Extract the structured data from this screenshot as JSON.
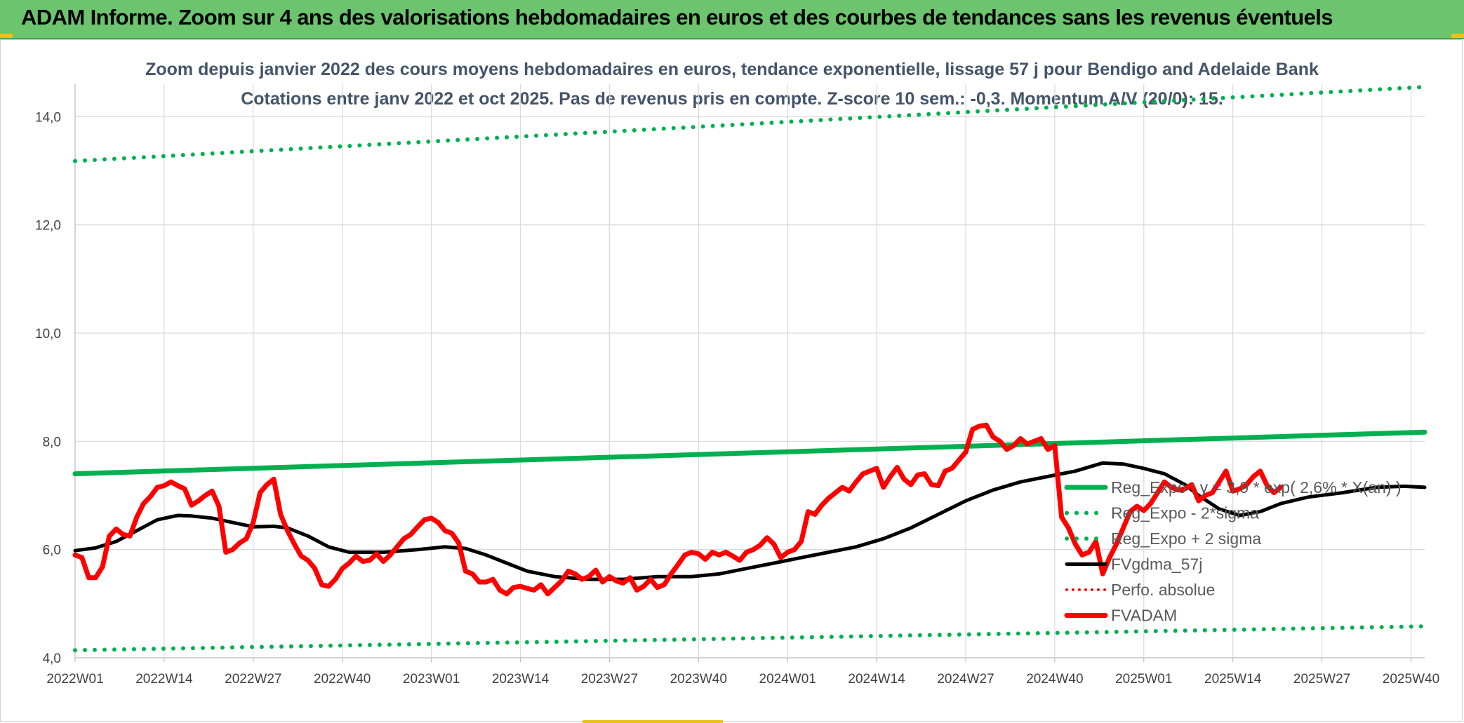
{
  "banner": {
    "title": "ADAM Informe. Zoom sur 4 ans des valorisations hebdomadaires en euros et des courbes de tendances sans les revenus éventuels"
  },
  "colors": {
    "banner": "#6cc46e",
    "reg_expo": "#00b050",
    "fvgdma": "#000000",
    "fvadam": "#ff0000",
    "perfo": "#ff0000",
    "grid": "#d9d9d9",
    "subtitle": "#44546a"
  },
  "chart_data": {
    "type": "line",
    "title_line1": "Zoom depuis janvier 2022 des cours moyens hebdomadaires en euros, tendance exponentielle, lissage 57 j pour Bendigo and Adelaide Bank",
    "title_line2": "Cotations entre janv 2022 et oct 2025. Pas de revenus pris en compte. Z-score 10 sem.: -0,3. Momentum A/V (20/0): 15.",
    "ylim": [
      4.0,
      14.6
    ],
    "yticks": [
      4.0,
      6.0,
      8.0,
      10.0,
      12.0,
      14.0
    ],
    "ytick_labels": [
      "4,0",
      "6,0",
      "8,0",
      "10,0",
      "12,0",
      "14,0"
    ],
    "x_range": [
      0,
      197
    ],
    "xticks": [
      0,
      13,
      26,
      39,
      52,
      65,
      78,
      91,
      104,
      117,
      130,
      143,
      156,
      169,
      182,
      195
    ],
    "xtick_labels": [
      "2022W01",
      "2022W14",
      "2022W27",
      "2022W40",
      "2023W01",
      "2023W14",
      "2023W27",
      "2023W40",
      "2024W01",
      "2024W14",
      "2024W27",
      "2024W40",
      "2025W01",
      "2025W14",
      "2025W27",
      "2025W40"
    ],
    "grid": true,
    "legend_position": "right",
    "series": [
      {
        "name": "Reg_Expo : y = 3,9 * exp( 2,6% * X(an) )",
        "style": "solid-thick",
        "points": [
          [
            0,
            7.4
          ],
          [
            197,
            8.17
          ]
        ]
      },
      {
        "name": "Reg_Expo - 2*sigma",
        "style": "dotted",
        "points": [
          [
            0,
            4.14
          ],
          [
            197,
            4.58
          ]
        ]
      },
      {
        "name": "Reg_Expo + 2 sigma",
        "style": "dotted",
        "points": [
          [
            0,
            13.18
          ],
          [
            197,
            14.55
          ]
        ]
      },
      {
        "name": "FVgdma_57j",
        "style": "solid",
        "points": [
          [
            0,
            5.98
          ],
          [
            3,
            6.03
          ],
          [
            6,
            6.15
          ],
          [
            9,
            6.35
          ],
          [
            12,
            6.55
          ],
          [
            15,
            6.63
          ],
          [
            17,
            6.62
          ],
          [
            20,
            6.58
          ],
          [
            23,
            6.5
          ],
          [
            26,
            6.42
          ],
          [
            29,
            6.43
          ],
          [
            31,
            6.4
          ],
          [
            34,
            6.25
          ],
          [
            37,
            6.05
          ],
          [
            40,
            5.95
          ],
          [
            45,
            5.95
          ],
          [
            50,
            6.0
          ],
          [
            54,
            6.05
          ],
          [
            57,
            6.02
          ],
          [
            60,
            5.9
          ],
          [
            63,
            5.75
          ],
          [
            66,
            5.6
          ],
          [
            70,
            5.5
          ],
          [
            75,
            5.45
          ],
          [
            80,
            5.45
          ],
          [
            85,
            5.5
          ],
          [
            90,
            5.5
          ],
          [
            94,
            5.55
          ],
          [
            98,
            5.65
          ],
          [
            102,
            5.75
          ],
          [
            106,
            5.85
          ],
          [
            110,
            5.95
          ],
          [
            114,
            6.05
          ],
          [
            118,
            6.2
          ],
          [
            122,
            6.4
          ],
          [
            126,
            6.65
          ],
          [
            130,
            6.9
          ],
          [
            134,
            7.1
          ],
          [
            138,
            7.25
          ],
          [
            142,
            7.35
          ],
          [
            146,
            7.45
          ],
          [
            150,
            7.6
          ],
          [
            153,
            7.58
          ],
          [
            156,
            7.5
          ],
          [
            159,
            7.4
          ],
          [
            162,
            7.2
          ],
          [
            164,
            7.0
          ],
          [
            167,
            6.75
          ],
          [
            170,
            6.63
          ],
          [
            173,
            6.7
          ],
          [
            176,
            6.85
          ],
          [
            180,
            6.97
          ],
          [
            185,
            7.05
          ],
          [
            190,
            7.15
          ],
          [
            194,
            7.17
          ],
          [
            197,
            7.15
          ]
        ]
      },
      {
        "name": "Perfo. absolue",
        "style": "dotted",
        "points": []
      },
      {
        "name": "FVADAM",
        "style": "solid-thick",
        "points": [
          [
            0,
            5.9
          ],
          [
            1,
            5.85
          ],
          [
            2,
            5.48
          ],
          [
            3,
            5.48
          ],
          [
            4,
            5.68
          ],
          [
            5,
            6.25
          ],
          [
            6,
            6.38
          ],
          [
            7,
            6.28
          ],
          [
            8,
            6.25
          ],
          [
            9,
            6.6
          ],
          [
            10,
            6.85
          ],
          [
            11,
            6.98
          ],
          [
            12,
            7.15
          ],
          [
            13,
            7.18
          ],
          [
            14,
            7.25
          ],
          [
            15,
            7.18
          ],
          [
            16,
            7.12
          ],
          [
            17,
            6.82
          ],
          [
            18,
            6.9
          ],
          [
            19,
            7.0
          ],
          [
            20,
            7.08
          ],
          [
            21,
            6.8
          ],
          [
            22,
            5.95
          ],
          [
            23,
            6.0
          ],
          [
            24,
            6.12
          ],
          [
            25,
            6.2
          ],
          [
            26,
            6.5
          ],
          [
            27,
            7.05
          ],
          [
            28,
            7.2
          ],
          [
            29,
            7.3
          ],
          [
            30,
            6.65
          ],
          [
            31,
            6.35
          ],
          [
            32,
            6.1
          ],
          [
            33,
            5.88
          ],
          [
            34,
            5.8
          ],
          [
            35,
            5.65
          ],
          [
            36,
            5.35
          ],
          [
            37,
            5.32
          ],
          [
            38,
            5.45
          ],
          [
            39,
            5.65
          ],
          [
            40,
            5.75
          ],
          [
            41,
            5.88
          ],
          [
            42,
            5.78
          ],
          [
            43,
            5.8
          ],
          [
            44,
            5.92
          ],
          [
            45,
            5.78
          ],
          [
            46,
            5.9
          ],
          [
            47,
            6.05
          ],
          [
            48,
            6.2
          ],
          [
            49,
            6.28
          ],
          [
            50,
            6.42
          ],
          [
            51,
            6.55
          ],
          [
            52,
            6.58
          ],
          [
            53,
            6.5
          ],
          [
            54,
            6.35
          ],
          [
            55,
            6.3
          ],
          [
            56,
            6.12
          ],
          [
            57,
            5.6
          ],
          [
            58,
            5.55
          ],
          [
            59,
            5.4
          ],
          [
            60,
            5.4
          ],
          [
            61,
            5.45
          ],
          [
            62,
            5.25
          ],
          [
            63,
            5.18
          ],
          [
            64,
            5.3
          ],
          [
            65,
            5.32
          ],
          [
            66,
            5.28
          ],
          [
            67,
            5.25
          ],
          [
            68,
            5.35
          ],
          [
            69,
            5.18
          ],
          [
            70,
            5.3
          ],
          [
            71,
            5.42
          ],
          [
            72,
            5.6
          ],
          [
            73,
            5.55
          ],
          [
            74,
            5.45
          ],
          [
            75,
            5.5
          ],
          [
            76,
            5.62
          ],
          [
            77,
            5.4
          ],
          [
            78,
            5.5
          ],
          [
            79,
            5.42
          ],
          [
            80,
            5.38
          ],
          [
            81,
            5.48
          ],
          [
            82,
            5.25
          ],
          [
            83,
            5.32
          ],
          [
            84,
            5.45
          ],
          [
            85,
            5.3
          ],
          [
            86,
            5.35
          ],
          [
            87,
            5.55
          ],
          [
            88,
            5.72
          ],
          [
            89,
            5.9
          ],
          [
            90,
            5.95
          ],
          [
            91,
            5.92
          ],
          [
            92,
            5.82
          ],
          [
            93,
            5.95
          ],
          [
            94,
            5.9
          ],
          [
            95,
            5.95
          ],
          [
            96,
            5.88
          ],
          [
            97,
            5.8
          ],
          [
            98,
            5.95
          ],
          [
            99,
            6.0
          ],
          [
            100,
            6.08
          ],
          [
            101,
            6.22
          ],
          [
            102,
            6.1
          ],
          [
            103,
            5.85
          ],
          [
            104,
            5.95
          ],
          [
            105,
            6.0
          ],
          [
            106,
            6.15
          ],
          [
            107,
            6.7
          ],
          [
            108,
            6.65
          ],
          [
            109,
            6.82
          ],
          [
            110,
            6.95
          ],
          [
            111,
            7.05
          ],
          [
            112,
            7.15
          ],
          [
            113,
            7.08
          ],
          [
            114,
            7.25
          ],
          [
            115,
            7.4
          ],
          [
            116,
            7.45
          ],
          [
            117,
            7.5
          ],
          [
            118,
            7.15
          ],
          [
            119,
            7.35
          ],
          [
            120,
            7.52
          ],
          [
            121,
            7.3
          ],
          [
            122,
            7.2
          ],
          [
            123,
            7.38
          ],
          [
            124,
            7.4
          ],
          [
            125,
            7.2
          ],
          [
            126,
            7.18
          ],
          [
            127,
            7.45
          ],
          [
            128,
            7.5
          ],
          [
            129,
            7.65
          ],
          [
            130,
            7.8
          ],
          [
            131,
            8.22
          ],
          [
            132,
            8.28
          ],
          [
            133,
            8.3
          ],
          [
            134,
            8.08
          ],
          [
            135,
            8.0
          ],
          [
            136,
            7.85
          ],
          [
            137,
            7.92
          ],
          [
            138,
            8.05
          ],
          [
            139,
            7.95
          ],
          [
            140,
            8.0
          ],
          [
            141,
            8.05
          ],
          [
            142,
            7.85
          ],
          [
            143,
            7.92
          ],
          [
            144,
            6.6
          ],
          [
            145,
            6.4
          ],
          [
            146,
            6.1
          ],
          [
            147,
            5.9
          ],
          [
            148,
            5.95
          ],
          [
            149,
            6.15
          ],
          [
            150,
            5.55
          ],
          [
            151,
            5.85
          ],
          [
            152,
            6.1
          ],
          [
            153,
            6.4
          ],
          [
            154,
            6.7
          ],
          [
            155,
            6.8
          ],
          [
            156,
            6.72
          ],
          [
            157,
            6.85
          ],
          [
            158,
            7.05
          ],
          [
            159,
            7.25
          ],
          [
            160,
            7.15
          ],
          [
            161,
            7.1
          ],
          [
            162,
            7.12
          ],
          [
            163,
            7.2
          ],
          [
            164,
            6.9
          ],
          [
            165,
            7.0
          ],
          [
            166,
            7.05
          ],
          [
            167,
            7.25
          ],
          [
            168,
            7.45
          ],
          [
            169,
            7.08
          ],
          [
            170,
            7.12
          ],
          [
            171,
            7.2
          ],
          [
            172,
            7.35
          ],
          [
            173,
            7.45
          ],
          [
            174,
            7.18
          ],
          [
            175,
            7.05
          ],
          [
            176,
            7.15
          ]
        ]
      }
    ]
  }
}
